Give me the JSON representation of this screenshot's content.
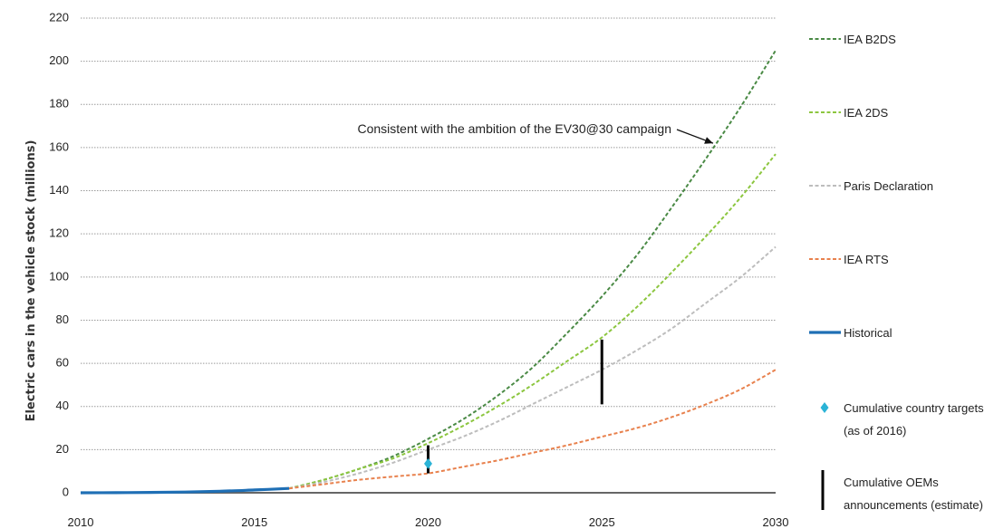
{
  "chart_data": {
    "type": "line",
    "title": "",
    "xlabel": "",
    "ylabel": "Electric cars in the vehicle stock (millions)",
    "xlim": [
      2010,
      2030
    ],
    "ylim": [
      0,
      220
    ],
    "x_ticks": [
      "2010",
      "2015",
      "2020",
      "2025",
      "2030"
    ],
    "y_ticks": [
      "0",
      "20",
      "40",
      "60",
      "80",
      "100",
      "120",
      "140",
      "160",
      "180",
      "200",
      "220"
    ],
    "grid": "horizontal dotted",
    "legend_position": "right",
    "series": [
      {
        "name": "IEA B2DS",
        "color": "#4a8a45",
        "style": "dashed",
        "x": [
          2016,
          2017,
          2018,
          2019,
          2020,
          2021,
          2022,
          2023,
          2024,
          2025,
          2026,
          2027,
          2028,
          2029,
          2030
        ],
        "y": [
          2,
          6,
          11,
          17,
          25,
          34,
          45,
          58,
          74,
          91,
          110,
          132,
          155,
          179,
          205
        ]
      },
      {
        "name": "IEA 2DS",
        "color": "#8cc63f",
        "style": "dashed",
        "x": [
          2016,
          2017,
          2018,
          2019,
          2020,
          2021,
          2022,
          2023,
          2024,
          2025,
          2026,
          2027,
          2028,
          2029,
          2030
        ],
        "y": [
          2,
          6,
          11,
          16,
          23,
          31,
          40,
          50,
          61,
          72,
          86,
          102,
          119,
          137,
          157
        ]
      },
      {
        "name": "Paris Declaration",
        "color": "#bdbdbd",
        "style": "dashed",
        "x": [
          2016,
          2017,
          2018,
          2019,
          2020,
          2021,
          2022,
          2023,
          2024,
          2025,
          2026,
          2027,
          2028,
          2029,
          2030
        ],
        "y": [
          2,
          5,
          9,
          14,
          20,
          26,
          33,
          41,
          49,
          57,
          66,
          76,
          88,
          100,
          114
        ]
      },
      {
        "name": "IEA RTS",
        "color": "#e8814d",
        "style": "dashed",
        "x": [
          2016,
          2017,
          2018,
          2019,
          2020,
          2021,
          2022,
          2023,
          2024,
          2025,
          2026,
          2027,
          2028,
          2029,
          2030
        ],
        "y": [
          2,
          4,
          6,
          7.5,
          9,
          12,
          15,
          18.5,
          22,
          26,
          30,
          35,
          41,
          48,
          57
        ]
      },
      {
        "name": "Historical",
        "color": "#1f6fb5",
        "style": "solid",
        "x": [
          2010,
          2011,
          2012,
          2013,
          2014,
          2015,
          2016
        ],
        "y": [
          0,
          0.05,
          0.15,
          0.35,
          0.7,
          1.3,
          2
        ]
      }
    ],
    "markers": [
      {
        "name": "Cumulative country targets (as of 2016)",
        "x": 2020,
        "y": 13.5,
        "color": "#2bb3d6"
      }
    ],
    "ranges": [
      {
        "name": "Cumulative OEMs announcements (estimate)",
        "x": 2020,
        "y_low": 9,
        "y_high": 22,
        "color": "#000000"
      },
      {
        "name": "Cumulative OEMs announcements (estimate)",
        "x": 2025,
        "y_low": 41,
        "y_high": 71,
        "color": "#000000"
      }
    ],
    "annotation": {
      "text": "Consistent with the ambition of the EV30@30 campaign",
      "target_series": "IEA B2DS",
      "target_x": 2028.2,
      "target_y": 162
    }
  },
  "legend": [
    {
      "label": "IEA B2DS",
      "kind": "dashed",
      "color": "#4a8a45"
    },
    {
      "label": "IEA 2DS",
      "kind": "dashed",
      "color": "#8cc63f"
    },
    {
      "label": "Paris Declaration",
      "kind": "dashed",
      "color": "#bdbdbd"
    },
    {
      "label": "IEA RTS",
      "kind": "dashed",
      "color": "#e8814d"
    },
    {
      "label": "Historical",
      "kind": "solid",
      "color": "#1f6fb5"
    },
    {
      "label": "Cumulative country targets",
      "label2": "(as of 2016)",
      "kind": "diamond",
      "color": "#2bb3d6"
    },
    {
      "label": "Cumulative OEMs",
      "label2": "announcements (estimate)",
      "kind": "bar",
      "color": "#000000"
    }
  ]
}
